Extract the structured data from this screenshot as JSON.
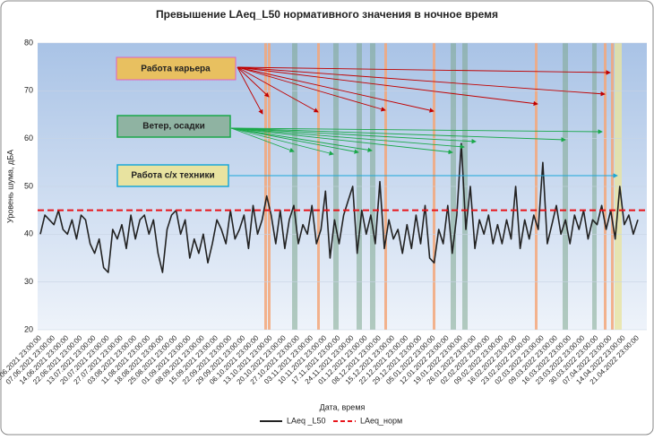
{
  "chart_data": {
    "type": "line",
    "title": "Превышение LAeq_L50 нормативного значения в ночное время",
    "x_label": "Дата, время",
    "y_label": "Уровень шума, дБА",
    "annotations": [
      "Работа карьера",
      "Ветер, осадки",
      "Работа с/х техники"
    ],
    "categories": [
      "01.06.2021 23:00:00",
      null,
      null,
      "07.06.2021 23:00:00",
      null,
      null,
      "14.06.2021 23:00:00",
      null,
      null,
      "22.06.2021 23:00:00",
      null,
      null,
      "13.07.2021 23:00:00",
      null,
      null,
      "20.07.2021 23:00:00",
      null,
      null,
      "27.07.2021 23:00:00",
      null,
      null,
      "03.08.2021 23:00:00",
      null,
      null,
      "11.08.2021 23:00:00",
      null,
      null,
      "18.08.2021 23:00:00",
      null,
      null,
      "25.08.2021 23:00:00",
      null,
      null,
      "01.09.2021 23:00:00",
      null,
      null,
      "08.09.2021 23:00:00",
      null,
      null,
      "15.09.2021 23:00:00",
      null,
      null,
      "22.09.2021 23:00:00",
      null,
      null,
      "29.09.2021 23:00:00",
      null,
      null,
      "06.10.2021 23:00:00",
      null,
      null,
      "13.10.2021 23:00:00",
      null,
      null,
      "20.10.2021 23:00:00",
      null,
      null,
      "27.10.2021 23:00:00",
      null,
      null,
      "03.11.2021 23:00:00",
      null,
      null,
      "10.11.2021 23:00:00",
      null,
      null,
      "17.11.2021 23:00:00",
      null,
      null,
      "24.11.2021 23:00:00",
      null,
      null,
      "01.12.2021 23:00:00",
      null,
      null,
      "08.12.2021 23:00:00",
      null,
      null,
      "15.12.2021 23:00:00",
      null,
      null,
      "22.12.2021 23:00:00",
      null,
      null,
      "29.12.2021 23:00:00",
      null,
      null,
      "05.01.2022 23:00:00",
      null,
      null,
      "12.01.2022 23:00:00",
      null,
      null,
      "19.01.2022 23:00:00",
      null,
      null,
      "26.01.2022 23:00:00",
      null,
      null,
      "02.02.2022 23:00:00",
      null,
      null,
      "09.02.2022 23:00:00",
      null,
      null,
      "16.02.2022 23:00:00",
      null,
      null,
      "23.02.2022 23:00:00",
      null,
      null,
      "02.03.2022 23:00:00",
      null,
      null,
      "09.03.2022 23:00:00",
      null,
      null,
      "16.03.2022 23:00:00",
      null,
      null,
      "23.03.2022 23:00:00",
      null,
      null,
      "30.03.2022 23:00:00",
      null,
      null,
      "07.04.2022 23:00:00",
      null,
      null,
      "14.04.2022 23:00:00",
      null,
      null,
      "21.04.2022 23:00:00"
    ],
    "series": [
      {
        "name": "LAeq _L50",
        "color": "#222222",
        "values": [
          40,
          44,
          43,
          42,
          45,
          41,
          40,
          43,
          39,
          44,
          43,
          38,
          36,
          39,
          33,
          32,
          41,
          39,
          42,
          37,
          44,
          39,
          43,
          44,
          40,
          43,
          36,
          32,
          41,
          44,
          45,
          40,
          43,
          35,
          39,
          36,
          40,
          34,
          38,
          43,
          41,
          38,
          45,
          39,
          41,
          44,
          37,
          46,
          40,
          43,
          48,
          44,
          38,
          45,
          37,
          43,
          46,
          38,
          42,
          40,
          46,
          38,
          41,
          49,
          35,
          43,
          38,
          44,
          47,
          50,
          36,
          45,
          40,
          44,
          38,
          51,
          37,
          43,
          39,
          41,
          36,
          42,
          37,
          44,
          38,
          46,
          35,
          34,
          41,
          38,
          46,
          36,
          44,
          59,
          41,
          50,
          37,
          43,
          40,
          44,
          38,
          42,
          38,
          43,
          39,
          50,
          37,
          43,
          39,
          44,
          41,
          55,
          38,
          42,
          46,
          40,
          43,
          38,
          44,
          41,
          45,
          39,
          43,
          42,
          46,
          41,
          45,
          39,
          50,
          42,
          44,
          40,
          43
        ]
      }
    ],
    "threshold": {
      "name": "LAeq_норм",
      "color": "#e8141a",
      "value": 45
    },
    "ylim": [
      20,
      80
    ],
    "yticks": [
      20,
      30,
      40,
      50,
      60,
      70,
      80
    ],
    "grid": true
  }
}
